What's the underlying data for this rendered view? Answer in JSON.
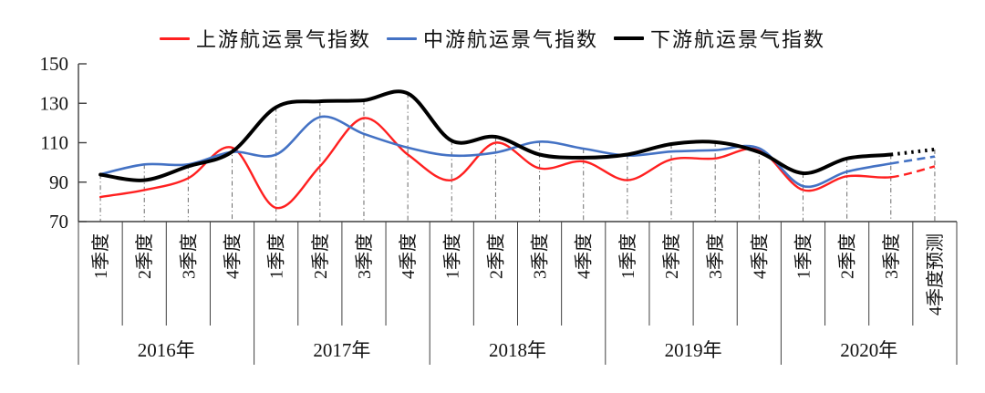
{
  "chart_data": {
    "type": "line",
    "title": "",
    "ylim": [
      70,
      150
    ],
    "yticks": [
      70,
      90,
      110,
      130,
      150
    ],
    "grid": false,
    "legend_position": "top",
    "drop_lines": true,
    "forecast_start_index": 18,
    "x_categories": [
      "1季度",
      "2季度",
      "3季度",
      "4季度",
      "1季度",
      "2季度",
      "3季度",
      "4季度",
      "1季度",
      "2季度",
      "3季度",
      "4季度",
      "1季度",
      "2季度",
      "3季度",
      "4季度",
      "1季度",
      "2季度",
      "3季度",
      "4季度预测"
    ],
    "year_groups": [
      {
        "label": "2016年",
        "quarters": 4
      },
      {
        "label": "2017年",
        "quarters": 4
      },
      {
        "label": "2018年",
        "quarters": 4
      },
      {
        "label": "2019年",
        "quarters": 4
      },
      {
        "label": "2020年",
        "quarters": 4
      }
    ],
    "series": [
      {
        "name": "上游航运景气指数",
        "color": "#FF2020",
        "line_width": 2.4,
        "forecast_style": "dashed",
        "values": [
          82.5,
          86,
          92,
          107.5,
          77,
          98,
          122.5,
          104,
          91,
          110,
          97,
          100.5,
          91,
          101.5,
          102,
          106.3,
          86,
          93,
          92.5,
          98
        ]
      },
      {
        "name": "中游航运景气指数",
        "color": "#4472C4",
        "line_width": 2.6,
        "forecast_style": "dashed",
        "values": [
          94,
          99,
          99,
          105.3,
          104,
          123,
          114.5,
          107.5,
          103.5,
          105,
          110.5,
          107,
          103.5,
          105.5,
          106.2,
          107.2,
          88,
          95.3,
          99.4,
          103
        ]
      },
      {
        "name": "下游航运景气指数",
        "color": "#000000",
        "line_width": 4,
        "forecast_style": "dotted",
        "values": [
          93.8,
          91,
          98,
          105.4,
          128,
          131,
          131.5,
          135,
          111,
          113,
          104,
          102.4,
          104,
          109.3,
          110.3,
          105.2,
          94.5,
          102,
          104,
          106.6
        ]
      }
    ],
    "axis_color": "#3f3f3f",
    "drop_line_color": "#6b6b6b"
  }
}
